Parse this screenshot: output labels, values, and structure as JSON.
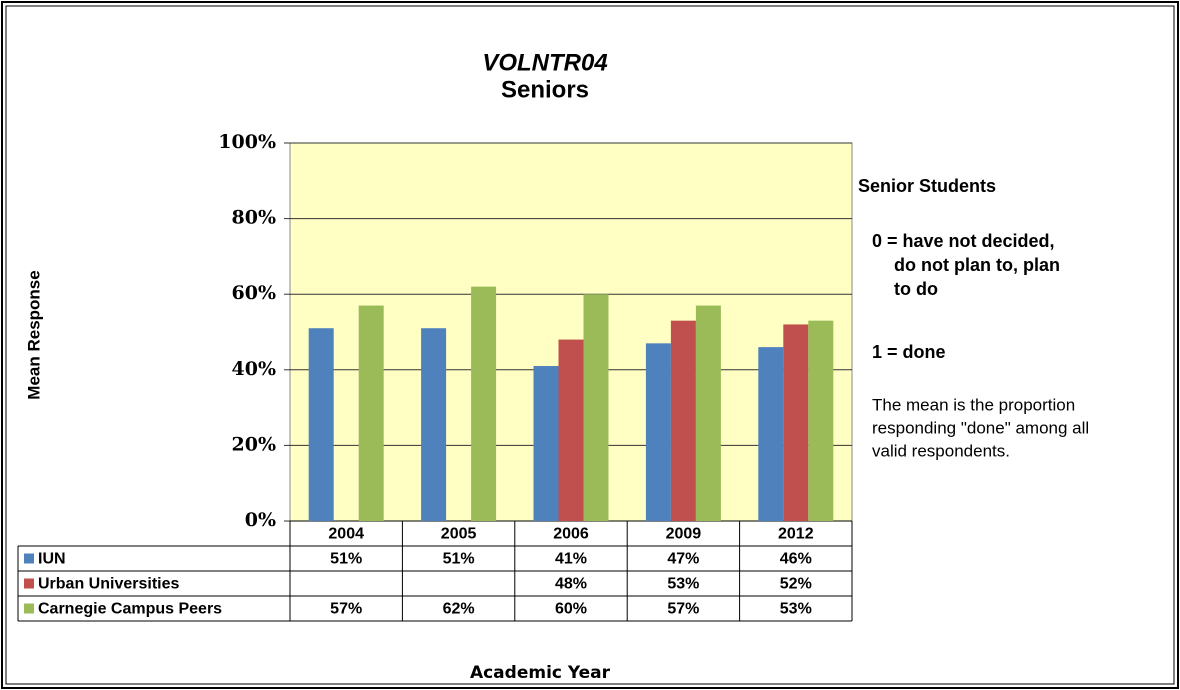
{
  "chart_data": {
    "type": "bar",
    "title": "VOLNTR04",
    "subtitle": "Seniors",
    "y_label": "Mean Response",
    "x_label": "Academic Year",
    "categories": [
      "2004",
      "2005",
      "2006",
      "2009",
      "2012"
    ],
    "series": [
      {
        "name": "IUN",
        "color": "#4f81bd",
        "values": [
          51,
          51,
          41,
          47,
          46
        ],
        "value_labels": [
          "51%",
          "51%",
          "41%",
          "47%",
          "46%"
        ]
      },
      {
        "name": "Urban Universities",
        "color": "#c0504d",
        "values": [
          null,
          null,
          48,
          53,
          52
        ],
        "value_labels": [
          null,
          null,
          "48%",
          "53%",
          "52%"
        ]
      },
      {
        "name": "Carnegie Campus Peers",
        "color": "#9bbb59",
        "values": [
          57,
          62,
          60,
          57,
          53
        ],
        "value_labels": [
          "57%",
          "62%",
          "60%",
          "57%",
          "53%"
        ]
      }
    ],
    "ylim": [
      0,
      100
    ],
    "yticks": [
      {
        "value": 0,
        "label": "0%"
      },
      {
        "value": 20,
        "label": "20%"
      },
      {
        "value": 40,
        "label": "40%"
      },
      {
        "value": 60,
        "label": "60%"
      },
      {
        "value": 80,
        "label": "80%"
      },
      {
        "value": 100,
        "label": "100%"
      }
    ],
    "grid": true,
    "notes": [
      [
        "Senior Students"
      ],
      [
        "0 = have not decided,",
        "do not plan to, plan",
        "to do"
      ],
      [
        "1 = done"
      ],
      [
        "The mean is the proportion",
        "responding \"done\" among all",
        "valid respondents."
      ]
    ]
  }
}
